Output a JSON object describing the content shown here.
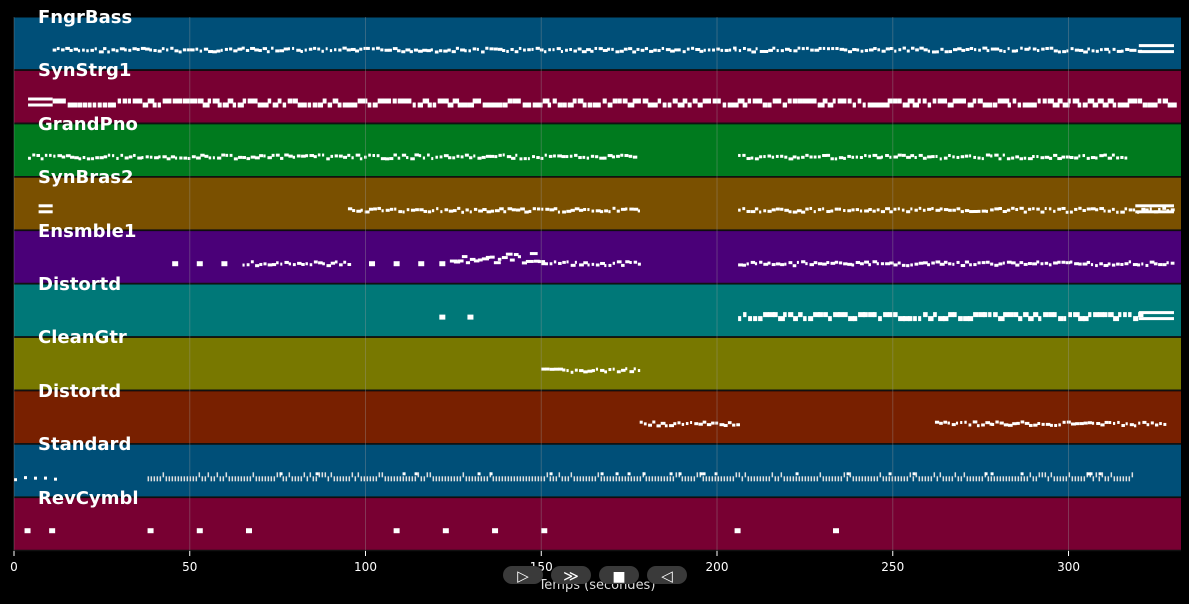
{
  "colors": {
    "background": "#000000",
    "note": "#ffffff",
    "grid": "#8a8a8a",
    "button_bg": "#3a3a3a",
    "button_fg": "#ffffff"
  },
  "chart_data": {
    "type": "piano-roll",
    "xlabel": "Temps (secondes)",
    "xlim": [
      0,
      332
    ],
    "xticks": [
      0,
      50,
      100,
      150,
      200,
      250,
      300
    ],
    "grid": true,
    "tracks": [
      {
        "name": "FngrBass",
        "color": "#004f78",
        "segments": [
          [
            11,
            205,
            "dense-thin"
          ],
          [
            205,
            320,
            "dense-thin"
          ],
          [
            320,
            330,
            "block"
          ]
        ]
      },
      {
        "name": "SynStrg1",
        "color": "#780032",
        "segments": [
          [
            4,
            11,
            "block"
          ],
          [
            11,
            330,
            "dense-thick"
          ]
        ]
      },
      {
        "name": "GrandPno",
        "color": "#007a1e",
        "segments": [
          [
            4,
            177,
            "dense-thin"
          ],
          [
            206,
            317,
            "dense-thin"
          ]
        ]
      },
      {
        "name": "SynBras2",
        "color": "#7a5000",
        "segments": [
          [
            7,
            11,
            "block"
          ],
          [
            95,
            178,
            "dense-thin"
          ],
          [
            206,
            330,
            "dense-thin"
          ],
          [
            319,
            330,
            "block"
          ]
        ]
      },
      {
        "name": "Ensmble1",
        "color": "#4a0078",
        "segments": [
          [
            45,
            46,
            "dot"
          ],
          [
            52,
            53,
            "dot"
          ],
          [
            59,
            60,
            "dot"
          ],
          [
            65,
            95,
            "dense-thin"
          ],
          [
            101,
            102,
            "dot"
          ],
          [
            108,
            109,
            "dot"
          ],
          [
            115,
            116,
            "dot"
          ],
          [
            121,
            122,
            "dot"
          ],
          [
            124,
            150,
            "chord"
          ],
          [
            150,
            178,
            "dense-thin"
          ],
          [
            206,
            330,
            "dense-thin"
          ]
        ]
      },
      {
        "name": "Distortd",
        "color": "#007878",
        "segments": [
          [
            121,
            122,
            "dot"
          ],
          [
            129,
            130,
            "dot"
          ],
          [
            206,
            320,
            "dense-thick"
          ],
          [
            320,
            330,
            "block"
          ]
        ]
      },
      {
        "name": "CleanGtr",
        "color": "#787800",
        "segments": [
          [
            150,
            178,
            "dense-thin"
          ]
        ]
      },
      {
        "name": "Distortd",
        "color": "#782000",
        "segments": [
          [
            178,
            206,
            "dense-thin"
          ],
          [
            262,
            278,
            "dense-thin"
          ],
          [
            278,
            328,
            "dense-thin"
          ]
        ]
      },
      {
        "name": "Standard",
        "color": "#004f78",
        "segments": [
          [
            0,
            12,
            "sparse"
          ],
          [
            38,
            318,
            "drum"
          ]
        ]
      },
      {
        "name": "RevCymbl",
        "color": "#780032",
        "segments": [
          [
            3,
            4,
            "dot"
          ],
          [
            10,
            11,
            "dot"
          ],
          [
            38,
            39,
            "dot"
          ],
          [
            52,
            53,
            "dot"
          ],
          [
            66,
            67,
            "dot"
          ],
          [
            108,
            109,
            "dot"
          ],
          [
            122,
            123,
            "dot"
          ],
          [
            136,
            137,
            "dot"
          ],
          [
            150,
            151,
            "dot"
          ],
          [
            205,
            206,
            "dot"
          ],
          [
            233,
            234,
            "dot"
          ]
        ]
      }
    ]
  },
  "transport": [
    {
      "name": "play-icon",
      "glyph": "▷"
    },
    {
      "name": "fast-forward-icon",
      "glyph": "≫"
    },
    {
      "name": "stop-icon",
      "glyph": "■"
    },
    {
      "name": "rewind-icon",
      "glyph": "◁"
    }
  ]
}
